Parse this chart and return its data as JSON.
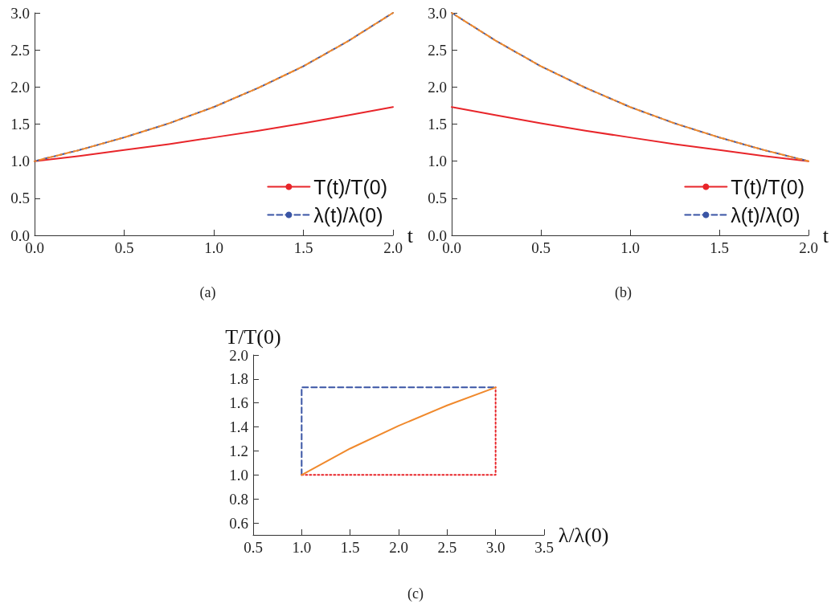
{
  "chart_data": [
    {
      "type": "line",
      "xlabel": "t",
      "annotations": [
        "(a)"
      ],
      "legend": "bottom right",
      "xlim": [
        0,
        2
      ],
      "ylim": [
        0,
        3
      ],
      "xticks": [
        {
          "value": 0,
          "label": "0.0"
        },
        {
          "value": 0.5,
          "label": "0.5"
        },
        {
          "value": 1,
          "label": "1.0"
        },
        {
          "value": 1.5,
          "label": "1.5"
        },
        {
          "value": 2,
          "label": "2.0"
        }
      ],
      "yticks": [
        {
          "value": 0,
          "label": "0.0"
        },
        {
          "value": 0.5,
          "label": "0.5"
        },
        {
          "value": 1,
          "label": "1.0"
        },
        {
          "value": 1.5,
          "label": "1.5"
        },
        {
          "value": 2,
          "label": "2.0"
        },
        {
          "value": 2.5,
          "label": "2.5"
        },
        {
          "value": 3,
          "label": "3.0"
        }
      ],
      "x": [
        0,
        0.25,
        0.5,
        0.75,
        1,
        1.25,
        1.5,
        1.75,
        2
      ],
      "series": [
        {
          "name": "T(t)/T(0)",
          "color": "#e8252a",
          "line_style": "solid",
          "values": [
            1.0,
            1.07,
            1.15,
            1.23,
            1.32,
            1.41,
            1.51,
            1.62,
            1.73
          ]
        },
        {
          "name": "λ(t)/λ(0)",
          "color": "#3a55a5",
          "line_style": "dashed",
          "values": [
            1.0,
            1.15,
            1.32,
            1.51,
            1.73,
            1.99,
            2.28,
            2.62,
            3.0
          ]
        },
        {
          "color": "#f0892c",
          "line_style": "dashed",
          "values": [
            1.0,
            1.15,
            1.32,
            1.51,
            1.73,
            1.99,
            2.28,
            2.62,
            3.0
          ]
        }
      ]
    },
    {
      "type": "line",
      "xlabel": "t",
      "annotations": [
        "(b)"
      ],
      "legend": "bottom right",
      "xlim": [
        0,
        2
      ],
      "ylim": [
        0,
        3
      ],
      "xticks": [
        {
          "value": 0,
          "label": "0.0"
        },
        {
          "value": 0.5,
          "label": "0.5"
        },
        {
          "value": 1,
          "label": "1.0"
        },
        {
          "value": 1.5,
          "label": "1.5"
        },
        {
          "value": 2,
          "label": "2.0"
        }
      ],
      "yticks": [
        {
          "value": 0,
          "label": "0.0"
        },
        {
          "value": 0.5,
          "label": "0.5"
        },
        {
          "value": 1,
          "label": "1.0"
        },
        {
          "value": 1.5,
          "label": "1.5"
        },
        {
          "value": 2,
          "label": "2.0"
        },
        {
          "value": 2.5,
          "label": "2.5"
        },
        {
          "value": 3,
          "label": "3.0"
        }
      ],
      "x": [
        0,
        0.25,
        0.5,
        0.75,
        1,
        1.25,
        1.5,
        1.75,
        2
      ],
      "series": [
        {
          "name": "T(t)/T(0)",
          "color": "#e8252a",
          "line_style": "solid",
          "values": [
            1.73,
            1.62,
            1.51,
            1.41,
            1.32,
            1.23,
            1.15,
            1.07,
            1.0
          ]
        },
        {
          "name": "λ(t)/λ(0)",
          "color": "#3a55a5",
          "line_style": "dashed",
          "values": [
            3.0,
            2.62,
            2.28,
            1.99,
            1.73,
            1.51,
            1.32,
            1.15,
            1.0
          ]
        },
        {
          "color": "#f0892c",
          "line_style": "dashed",
          "values": [
            3.0,
            2.62,
            2.28,
            1.99,
            1.73,
            1.51,
            1.32,
            1.15,
            1.0
          ]
        }
      ]
    },
    {
      "type": "line",
      "xlabel": "λ/λ(0)",
      "ylabel": "T/T(0)",
      "annotations": [
        "(c)"
      ],
      "xlim": [
        0.5,
        3.5
      ],
      "ylim": [
        0.5,
        2.0
      ],
      "xticks": [
        {
          "value": 0.5,
          "label": "0.5"
        },
        {
          "value": 1,
          "label": "1.0"
        },
        {
          "value": 1.5,
          "label": "1.5"
        },
        {
          "value": 2,
          "label": "2.0"
        },
        {
          "value": 2.5,
          "label": "2.5"
        },
        {
          "value": 3,
          "label": "3.0"
        },
        {
          "value": 3.5,
          "label": "3.5"
        }
      ],
      "yticks": [
        {
          "value": 0.6,
          "label": "0.6"
        },
        {
          "value": 0.8,
          "label": "0.8"
        },
        {
          "value": 1,
          "label": "1.0"
        },
        {
          "value": 1.2,
          "label": "1.2"
        },
        {
          "value": 1.4,
          "label": "1.4"
        },
        {
          "value": 1.6,
          "label": "1.6"
        },
        {
          "value": 1.8,
          "label": "1.8"
        },
        {
          "value": 2,
          "label": "2.0"
        }
      ],
      "series": [
        {
          "color": "#3a55a5",
          "line_style": "dashed",
          "x": [
            1,
            1,
            3
          ],
          "values": [
            1.0,
            1.73,
            1.73
          ]
        },
        {
          "color": "#e8252a",
          "line_style": "dotted",
          "x": [
            1,
            3,
            3
          ],
          "values": [
            1.0,
            1.0,
            1.73
          ]
        },
        {
          "color": "#f0892c",
          "line_style": "solid",
          "x": [
            1,
            1.5,
            2,
            2.5,
            3
          ],
          "values": [
            1.0,
            1.22,
            1.41,
            1.58,
            1.73
          ]
        }
      ]
    }
  ]
}
